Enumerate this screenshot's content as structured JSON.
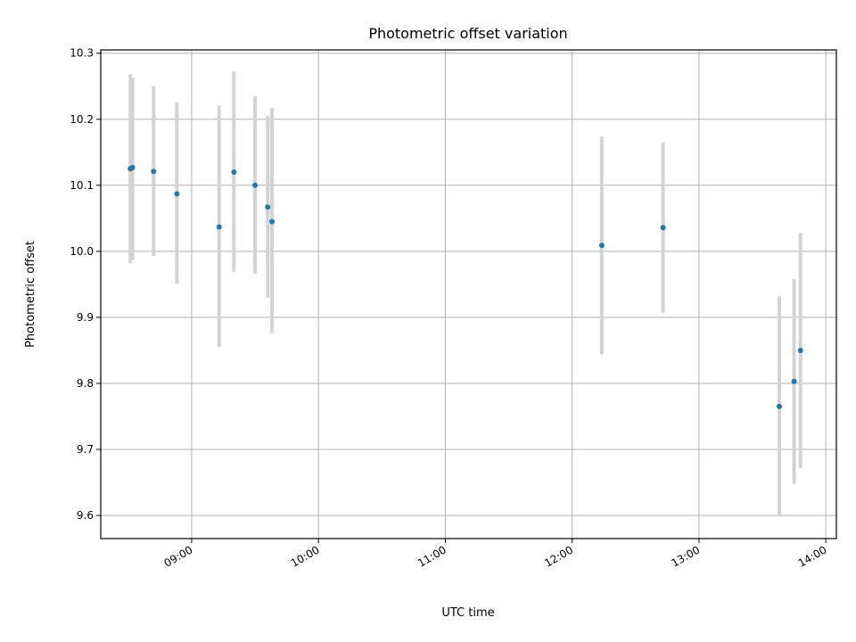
{
  "chart_data": {
    "type": "scatter",
    "title": "Photometric offset variation",
    "xlabel": "UTC time",
    "ylabel": "Photometric offset",
    "grid": true,
    "xlim": [
      "08:17",
      "14:05"
    ],
    "ylim": [
      9.565,
      10.305
    ],
    "x_ticks": [
      "09:00",
      "10:00",
      "11:00",
      "12:00",
      "13:00",
      "14:00"
    ],
    "y_ticks": [
      "9.6",
      "9.7",
      "9.8",
      "9.9",
      "10.0",
      "10.1",
      "10.2",
      "10.3"
    ],
    "colors": {
      "points": "#1f77b4",
      "error_bars": "#d3d3d3",
      "grid": "#b0b0b0"
    },
    "points": [
      {
        "x": "08:31",
        "y": 10.125,
        "err_low": 9.982,
        "err_high": 10.268
      },
      {
        "x": "08:32",
        "y": 10.127,
        "err_low": 9.987,
        "err_high": 10.263
      },
      {
        "x": "08:42",
        "y": 10.121,
        "err_low": 9.993,
        "err_high": 10.25
      },
      {
        "x": "08:53",
        "y": 10.087,
        "err_low": 9.951,
        "err_high": 10.226
      },
      {
        "x": "09:13",
        "y": 10.037,
        "err_low": 9.855,
        "err_high": 10.221
      },
      {
        "x": "09:20",
        "y": 10.12,
        "err_low": 9.969,
        "err_high": 10.273
      },
      {
        "x": "09:30",
        "y": 10.1,
        "err_low": 9.966,
        "err_high": 10.235
      },
      {
        "x": "09:36",
        "y": 10.067,
        "err_low": 9.93,
        "err_high": 10.205
      },
      {
        "x": "09:38",
        "y": 10.045,
        "err_low": 9.877,
        "err_high": 10.217
      },
      {
        "x": "12:14",
        "y": 10.009,
        "err_low": 9.844,
        "err_high": 10.174
      },
      {
        "x": "12:43",
        "y": 10.036,
        "err_low": 9.907,
        "err_high": 10.165
      },
      {
        "x": "13:38",
        "y": 9.765,
        "err_low": 9.599,
        "err_high": 9.932
      },
      {
        "x": "13:45",
        "y": 9.803,
        "err_low": 9.648,
        "err_high": 9.958
      },
      {
        "x": "13:48",
        "y": 9.85,
        "err_low": 9.672,
        "err_high": 10.028
      }
    ]
  }
}
